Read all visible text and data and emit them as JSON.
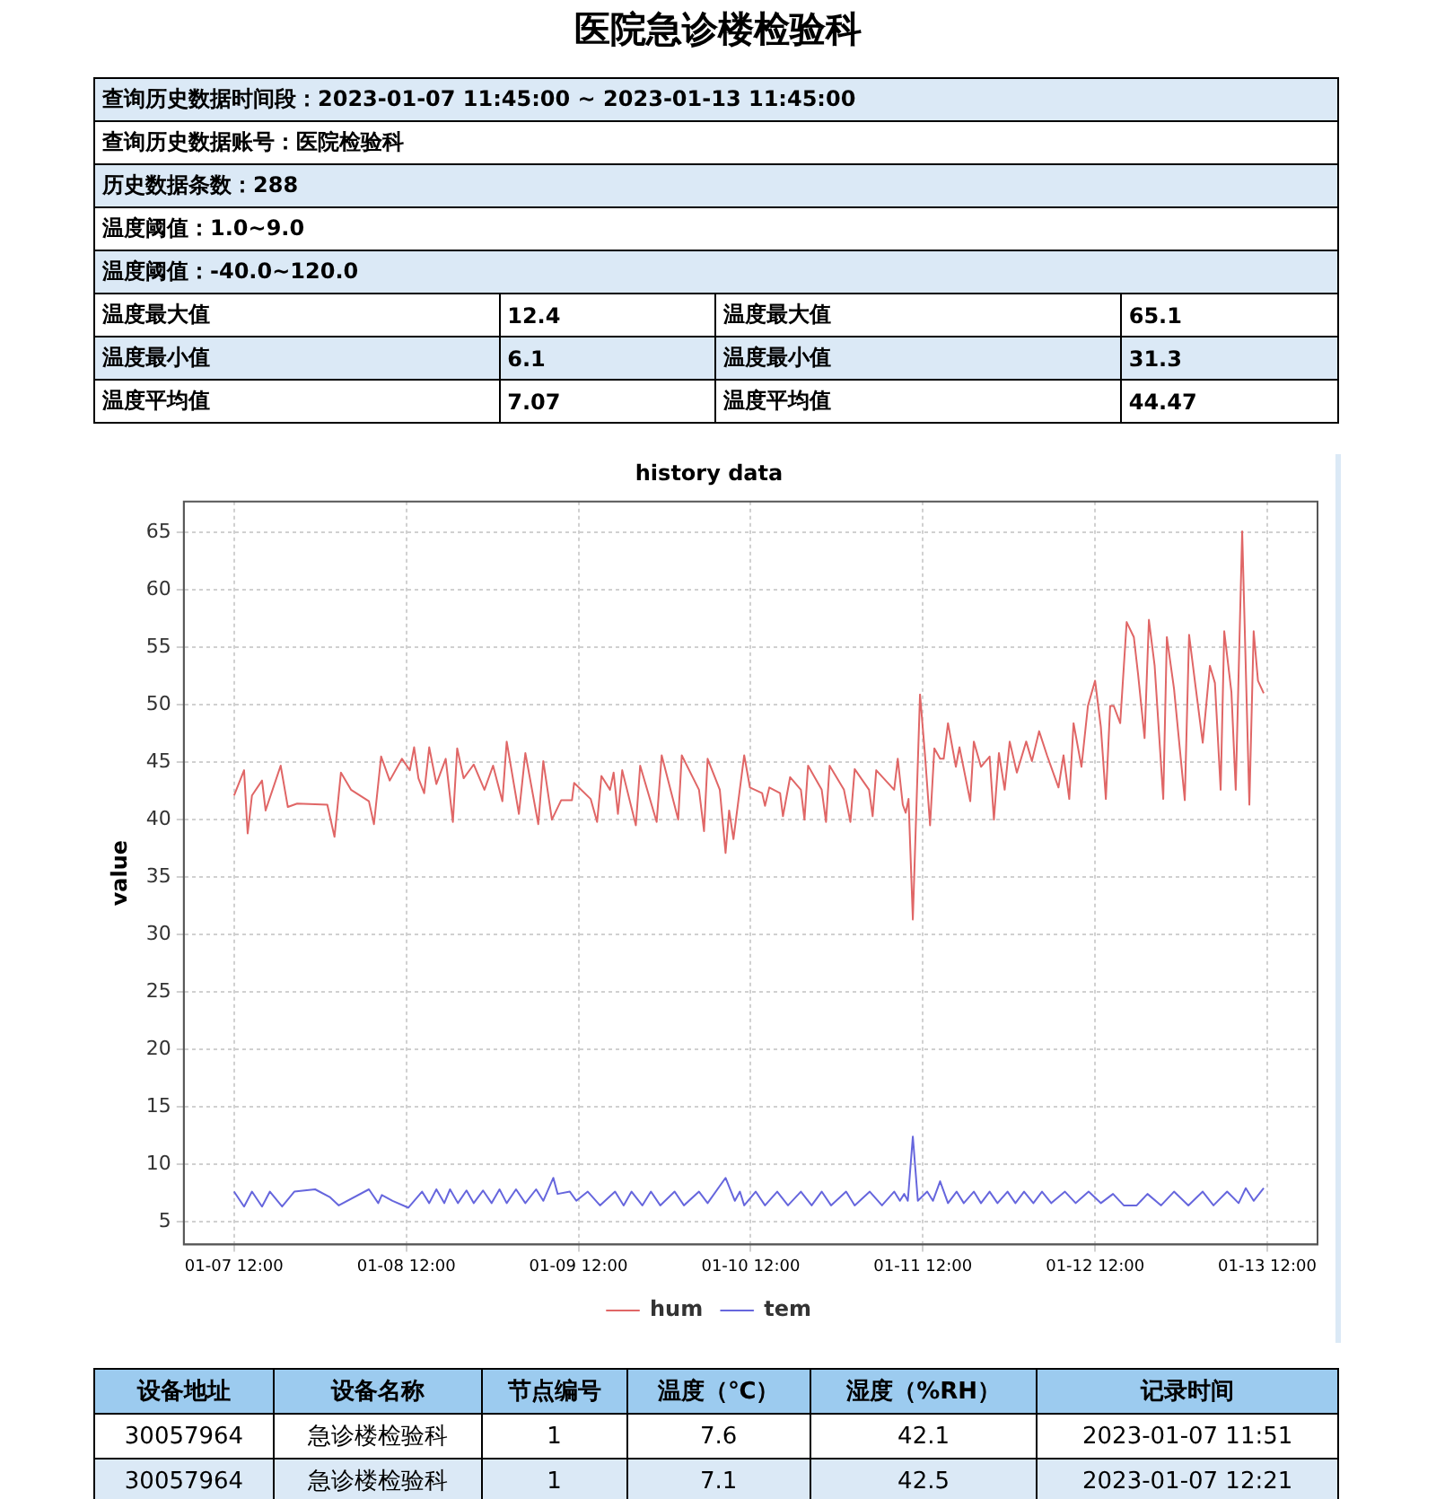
{
  "chart_data": {
    "type": "line",
    "title": "history data",
    "ylabel": "value",
    "annotations": [
      "医院急诊楼检验科",
      "查询历史数据时间段：2023-01-07 11:45:00 ~ 2023-01-13 11:45:00",
      "查询历史数据账号：医院检验科",
      "历史数据条数：288",
      "温度阈值：1.0~9.0",
      "温度阈值：-40.0~120.0",
      "温度最大值",
      "12.4",
      "温度最大值",
      "65.1",
      "温度最小值",
      "6.1",
      "温度最小值",
      "31.3",
      "温度平均值",
      "7.07",
      "温度平均值",
      "44.47",
      "设备地址",
      "设备名称",
      "节点编号",
      "温度（℃）",
      "湿度（%RH）",
      "记录时间",
      "30057964",
      "急诊楼检验科",
      "1",
      "7.6",
      "42.1",
      "2023-01-07 11:51",
      "30057964",
      "急诊楼检验科",
      "1",
      "7.1",
      "42.5",
      "2023-01-07 12:21"
    ],
    "xlim": [
      "2023-01-07T05:00",
      "2023-01-13T19:00"
    ],
    "xticks": [
      {
        "value": "2023-01-07T12:00",
        "label": "01-07 12:00"
      },
      {
        "value": "2023-01-08T12:00",
        "label": "01-08 12:00"
      },
      {
        "value": "2023-01-09T12:00",
        "label": "01-09 12:00"
      },
      {
        "value": "2023-01-10T12:00",
        "label": "01-10 12:00"
      },
      {
        "value": "2023-01-11T12:00",
        "label": "01-11 12:00"
      },
      {
        "value": "2023-01-12T12:00",
        "label": "01-12 12:00"
      },
      {
        "value": "2023-01-13T12:00",
        "label": "01-13 12:00"
      }
    ],
    "ylim": [
      3,
      67.7
    ],
    "yticks": [
      5,
      10,
      15,
      20,
      25,
      30,
      35,
      40,
      45,
      50,
      55,
      60,
      65
    ],
    "grid": true,
    "legend": "bottom",
    "marker": "none",
    "line_style": "solid",
    "series": [
      {
        "name": "hum",
        "color": "#e06666",
        "x": [
          "2023-01-07T12:00",
          "2023-01-07T13:24",
          "2023-01-07T13:54",
          "2023-01-07T14:30",
          "2023-01-07T15:54",
          "2023-01-07T16:24",
          "2023-01-07T18:30",
          "2023-01-07T19:30",
          "2023-01-07T20:48",
          "2023-01-08T01:00",
          "2023-01-08T02:00",
          "2023-01-08T02:54",
          "2023-01-08T04:18",
          "2023-01-08T06:48",
          "2023-01-08T07:30",
          "2023-01-08T08:30",
          "2023-01-08T09:42",
          "2023-01-08T11:24",
          "2023-01-08T12:30",
          "2023-01-08T13:06",
          "2023-01-08T13:42",
          "2023-01-08T14:30",
          "2023-01-08T15:12",
          "2023-01-08T16:12",
          "2023-01-08T17:30",
          "2023-01-08T18:30",
          "2023-01-08T19:06",
          "2023-01-08T20:00",
          "2023-01-08T21:24",
          "2023-01-08T22:54",
          "2023-01-09T00:06",
          "2023-01-09T01:24",
          "2023-01-09T02:00",
          "2023-01-09T03:42",
          "2023-01-09T04:36",
          "2023-01-09T06:24",
          "2023-01-09T07:06",
          "2023-01-09T08:18",
          "2023-01-09T09:36",
          "2023-01-09T11:06",
          "2023-01-09T11:24",
          "2023-01-09T13:42",
          "2023-01-09T14:36",
          "2023-01-09T15:12",
          "2023-01-09T16:24",
          "2023-01-09T16:54",
          "2023-01-09T17:30",
          "2023-01-09T18:06",
          "2023-01-09T20:00",
          "2023-01-09T20:36",
          "2023-01-09T22:54",
          "2023-01-09T23:36",
          "2023-01-10T01:54",
          "2023-01-10T02:24",
          "2023-01-10T04:48",
          "2023-01-10T05:30",
          "2023-01-10T06:00",
          "2023-01-10T07:42",
          "2023-01-10T08:30",
          "2023-01-10T09:00",
          "2023-01-10T09:36",
          "2023-01-10T11:06",
          "2023-01-10T11:54",
          "2023-01-10T13:36",
          "2023-01-10T14:00",
          "2023-01-10T14:36",
          "2023-01-10T16:06",
          "2023-01-10T16:30",
          "2023-01-10T17:30",
          "2023-01-10T19:00",
          "2023-01-10T19:30",
          "2023-01-10T20:00",
          "2023-01-10T21:54",
          "2023-01-10T22:30",
          "2023-01-10T23:00",
          "2023-01-11T01:00",
          "2023-01-11T01:54",
          "2023-01-11T02:30",
          "2023-01-11T04:30",
          "2023-01-11T05:00",
          "2023-01-11T05:30",
          "2023-01-11T08:00",
          "2023-01-11T08:30",
          "2023-01-11T09:12",
          "2023-01-11T09:36",
          "2023-01-11T10:00",
          "2023-01-11T10:36",
          "2023-01-11T11:36",
          "2023-01-11T12:18",
          "2023-01-11T13:00",
          "2023-01-11T13:36",
          "2023-01-11T14:24",
          "2023-01-11T14:54",
          "2023-01-11T15:30",
          "2023-01-11T16:36",
          "2023-01-11T17:06",
          "2023-01-11T18:36",
          "2023-01-11T19:06",
          "2023-01-11T20:06",
          "2023-01-11T21:18",
          "2023-01-11T21:54",
          "2023-01-11T22:36",
          "2023-01-11T23:24",
          "2023-01-12T00:06",
          "2023-01-12T01:06",
          "2023-01-12T02:24",
          "2023-01-12T03:12",
          "2023-01-12T04:12",
          "2023-01-12T05:18",
          "2023-01-12T06:54",
          "2023-01-12T07:36",
          "2023-01-12T08:24",
          "2023-01-12T09:00",
          "2023-01-12T10:06",
          "2023-01-12T11:00",
          "2023-01-12T12:00",
          "2023-01-12T12:48",
          "2023-01-12T13:30",
          "2023-01-12T14:06",
          "2023-01-12T14:36",
          "2023-01-12T15:30",
          "2023-01-12T16:24",
          "2023-01-12T17:24",
          "2023-01-12T18:00",
          "2023-01-12T18:54",
          "2023-01-12T19:30",
          "2023-01-12T20:18",
          "2023-01-12T21:30",
          "2023-01-12T22:00",
          "2023-01-12T23:00",
          "2023-01-13T00:30",
          "2023-01-13T01:06",
          "2023-01-13T02:00",
          "2023-01-13T03:00",
          "2023-01-13T04:00",
          "2023-01-13T04:42",
          "2023-01-13T05:30",
          "2023-01-13T06:00",
          "2023-01-13T07:00",
          "2023-01-13T07:36",
          "2023-01-13T08:30",
          "2023-01-13T09:30",
          "2023-01-13T10:06",
          "2023-01-13T10:42",
          "2023-01-13T11:30"
        ],
        "values": [
          42.1,
          44.3,
          38.8,
          42.1,
          43.4,
          40.8,
          44.7,
          41.1,
          41.4,
          41.3,
          38.5,
          44.1,
          42.6,
          41.6,
          39.6,
          45.5,
          43.4,
          45.3,
          44.3,
          46.3,
          43.6,
          42.3,
          46.3,
          43.1,
          45.3,
          39.8,
          46.2,
          43.6,
          44.8,
          42.6,
          44.7,
          41.6,
          46.8,
          40.5,
          45.8,
          39.6,
          45.1,
          40.0,
          41.7,
          41.7,
          43.2,
          41.8,
          39.8,
          43.8,
          42.6,
          44.1,
          40.5,
          44.3,
          39.5,
          44.7,
          39.8,
          45.6,
          40.0,
          45.6,
          42.6,
          39.0,
          45.3,
          42.6,
          37.1,
          40.8,
          38.3,
          45.6,
          42.8,
          42.3,
          41.2,
          42.8,
          42.3,
          40.3,
          43.7,
          42.6,
          40.0,
          44.7,
          42.6,
          39.8,
          44.7,
          42.6,
          39.8,
          44.4,
          42.6,
          40.3,
          44.3,
          42.6,
          45.3,
          41.3,
          40.6,
          41.8,
          31.3,
          50.9,
          45.6,
          39.5,
          46.2,
          45.3,
          45.3,
          48.4,
          44.6,
          46.3,
          41.6,
          46.8,
          44.6,
          45.5,
          40.0,
          45.8,
          42.6,
          46.8,
          44.1,
          46.8,
          45.1,
          47.7,
          45.6,
          42.8,
          45.6,
          41.8,
          48.4,
          44.6,
          49.9,
          52.1,
          48.1,
          41.8,
          49.9,
          49.9,
          48.4,
          57.2,
          55.9,
          52.6,
          47.1,
          57.4,
          53.4,
          41.8,
          55.9,
          51.4,
          41.7,
          56.1,
          51.6,
          46.7,
          53.4,
          51.9,
          42.6,
          56.4,
          51.1,
          42.6,
          65.1,
          41.3,
          56.4,
          52.1,
          51.0
        ]
      },
      {
        "name": "tem",
        "color": "#6666dd",
        "x": [
          "2023-01-07T12:00",
          "2023-01-07T13:24",
          "2023-01-07T14:30",
          "2023-01-07T15:54",
          "2023-01-07T17:00",
          "2023-01-07T18:42",
          "2023-01-07T20:24",
          "2023-01-07T23:18",
          "2023-01-08T01:24",
          "2023-01-08T02:36",
          "2023-01-08T06:48",
          "2023-01-08T08:06",
          "2023-01-08T08:36",
          "2023-01-08T10:06",
          "2023-01-08T12:18",
          "2023-01-08T14:12",
          "2023-01-08T15:12",
          "2023-01-08T16:12",
          "2023-01-08T17:18",
          "2023-01-08T18:06",
          "2023-01-08T19:12",
          "2023-01-08T20:24",
          "2023-01-08T21:24",
          "2023-01-08T22:42",
          "2023-01-08T23:54",
          "2023-01-09T01:00",
          "2023-01-09T02:00",
          "2023-01-09T03:18",
          "2023-01-09T04:36",
          "2023-01-09T06:06",
          "2023-01-09T07:06",
          "2023-01-09T08:30",
          "2023-01-09T09:06",
          "2023-01-09T10:48",
          "2023-01-09T11:42",
          "2023-01-09T13:18",
          "2023-01-09T15:00",
          "2023-01-09T17:06",
          "2023-01-09T18:18",
          "2023-01-09T19:24",
          "2023-01-09T20:54",
          "2023-01-09T22:06",
          "2023-01-09T23:24",
          "2023-01-10T01:24",
          "2023-01-10T02:42",
          "2023-01-10T04:48",
          "2023-01-10T06:00",
          "2023-01-10T08:30",
          "2023-01-10T09:48",
          "2023-01-10T10:30",
          "2023-01-10T11:06",
          "2023-01-10T12:42",
          "2023-01-10T14:00",
          "2023-01-10T15:42",
          "2023-01-10T17:12",
          "2023-01-10T19:00",
          "2023-01-10T20:30",
          "2023-01-10T21:54",
          "2023-01-10T23:12",
          "2023-01-11T01:18",
          "2023-01-11T02:30",
          "2023-01-11T04:36",
          "2023-01-11T06:18",
          "2023-01-11T08:00",
          "2023-01-11T08:48",
          "2023-01-11T09:24",
          "2023-01-11T09:54",
          "2023-01-11T10:36",
          "2023-01-11T11:18",
          "2023-01-11T12:36",
          "2023-01-11T13:24",
          "2023-01-11T14:24",
          "2023-01-11T15:30",
          "2023-01-11T16:42",
          "2023-01-11T17:42",
          "2023-01-11T19:06",
          "2023-01-11T20:06",
          "2023-01-11T21:18",
          "2023-01-11T22:24",
          "2023-01-11T23:48",
          "2023-01-12T00:54",
          "2023-01-12T02:06",
          "2023-01-12T03:24",
          "2023-01-12T04:36",
          "2023-01-12T05:54",
          "2023-01-12T07:48",
          "2023-01-12T09:18",
          "2023-01-12T11:06",
          "2023-01-12T12:48",
          "2023-01-12T14:30",
          "2023-01-12T16:00",
          "2023-01-12T17:48",
          "2023-01-12T19:18",
          "2023-01-12T21:12",
          "2023-01-12T23:00",
          "2023-01-13T01:00",
          "2023-01-13T03:00",
          "2023-01-13T04:30",
          "2023-01-13T06:24",
          "2023-01-13T08:00",
          "2023-01-13T09:00",
          "2023-01-13T10:06",
          "2023-01-13T11:30"
        ],
        "values": [
          7.6,
          6.3,
          7.6,
          6.3,
          7.6,
          6.3,
          7.6,
          7.8,
          7.1,
          6.4,
          7.8,
          6.6,
          7.3,
          6.8,
          6.2,
          7.6,
          6.6,
          7.8,
          6.6,
          7.8,
          6.6,
          7.7,
          6.6,
          7.7,
          6.6,
          7.8,
          6.6,
          7.8,
          6.6,
          7.8,
          6.8,
          8.8,
          7.4,
          7.6,
          6.8,
          7.6,
          6.4,
          7.6,
          6.4,
          7.6,
          6.4,
          7.6,
          6.4,
          7.6,
          6.4,
          7.6,
          6.6,
          8.8,
          6.8,
          7.6,
          6.4,
          7.6,
          6.4,
          7.6,
          6.4,
          7.6,
          6.4,
          7.6,
          6.4,
          7.6,
          6.4,
          7.6,
          6.4,
          7.6,
          6.8,
          7.4,
          6.8,
          12.4,
          6.8,
          7.6,
          6.8,
          8.5,
          6.6,
          7.6,
          6.6,
          7.6,
          6.6,
          7.6,
          6.6,
          7.6,
          6.6,
          7.6,
          6.6,
          7.6,
          6.6,
          7.6,
          6.6,
          7.6,
          6.6,
          7.4,
          6.4,
          6.4,
          7.4,
          6.4,
          7.6,
          6.4,
          7.6,
          6.4,
          7.6,
          6.6,
          7.9,
          6.8,
          7.9
        ]
      }
    ]
  }
}
